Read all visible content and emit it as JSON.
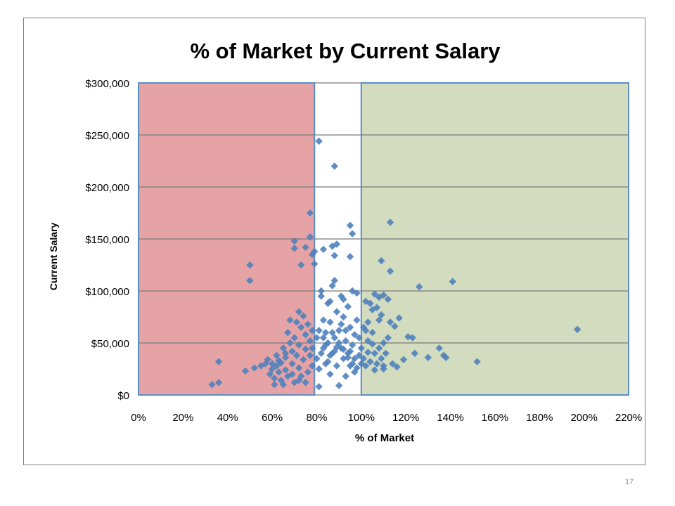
{
  "slide": {
    "number": "17"
  },
  "chart_data": {
    "type": "scatter",
    "title": "% of Market by Current Salary",
    "xlabel": "% of Market",
    "ylabel": "Current Salary",
    "xlim": [
      0,
      2.2
    ],
    "ylim": [
      0,
      300000
    ],
    "x_ticks": [
      0,
      0.2,
      0.4,
      0.6,
      0.8,
      1.0,
      1.2,
      1.4,
      1.6,
      1.8,
      2.0,
      2.2
    ],
    "x_tick_labels": [
      "0%",
      "20%",
      "40%",
      "60%",
      "80%",
      "100%",
      "120%",
      "140%",
      "160%",
      "180%",
      "200%",
      "220%"
    ],
    "y_ticks": [
      0,
      50000,
      100000,
      150000,
      200000,
      250000,
      300000
    ],
    "y_tick_labels": [
      "$0",
      "$50,000",
      "$100,000",
      "$150,000",
      "$200,000",
      "$250,000",
      "$300,000"
    ],
    "grid": {
      "horizontal": true,
      "vertical": false
    },
    "bands": [
      {
        "x_range": [
          0,
          0.79
        ],
        "y_range": [
          0,
          300000
        ],
        "color": "#e6a3a5"
      },
      {
        "x_range": [
          1.0,
          2.2
        ],
        "y_range": [
          0,
          300000
        ],
        "color": "#d3dcbf"
      }
    ],
    "marker": {
      "shape": "diamond",
      "color": "#4f81bd"
    },
    "series": [
      {
        "values": [
          [
            0.81,
            244000
          ],
          [
            0.88,
            220000
          ],
          [
            0.77,
            175000
          ],
          [
            0.77,
            152000
          ],
          [
            0.7,
            148000
          ],
          [
            0.7,
            141000
          ],
          [
            0.75,
            142000
          ],
          [
            0.73,
            125000
          ],
          [
            0.78,
            135000
          ],
          [
            0.79,
            138000
          ],
          [
            0.79,
            126000
          ],
          [
            0.5,
            125000
          ],
          [
            0.5,
            110000
          ],
          [
            0.83,
            140000
          ],
          [
            0.87,
            143000
          ],
          [
            0.89,
            145000
          ],
          [
            0.88,
            134000
          ],
          [
            0.95,
            163000
          ],
          [
            0.96,
            155000
          ],
          [
            0.95,
            133000
          ],
          [
            1.13,
            166000
          ],
          [
            1.09,
            129000
          ],
          [
            1.13,
            119000
          ],
          [
            1.26,
            104000
          ],
          [
            1.41,
            109000
          ],
          [
            1.97,
            63000
          ],
          [
            1.52,
            32000
          ],
          [
            1.35,
            45000
          ],
          [
            1.37,
            38000
          ],
          [
            1.38,
            36000
          ],
          [
            1.3,
            36000
          ],
          [
            1.24,
            40000
          ],
          [
            1.21,
            56000
          ],
          [
            1.23,
            55000
          ],
          [
            1.17,
            74000
          ],
          [
            1.13,
            70000
          ],
          [
            1.15,
            66000
          ],
          [
            1.1,
            96000
          ],
          [
            1.06,
            97000
          ],
          [
            1.08,
            94000
          ],
          [
            1.12,
            92000
          ],
          [
            1.07,
            84000
          ],
          [
            1.04,
            88000
          ],
          [
            1.12,
            55000
          ],
          [
            1.1,
            50000
          ],
          [
            1.19,
            34000
          ],
          [
            1.16,
            27000
          ],
          [
            1.14,
            30000
          ],
          [
            1.1,
            25000
          ],
          [
            1.06,
            24000
          ],
          [
            1.03,
            41000
          ],
          [
            1.05,
            49000
          ],
          [
            1.02,
            62000
          ],
          [
            1.08,
            72000
          ],
          [
            1.09,
            77000
          ],
          [
            0.36,
            32000
          ],
          [
            0.33,
            10000
          ],
          [
            0.36,
            12000
          ],
          [
            0.48,
            23000
          ],
          [
            0.52,
            26000
          ],
          [
            0.55,
            28000
          ],
          [
            0.57,
            30000
          ],
          [
            0.58,
            34000
          ],
          [
            0.59,
            20000
          ],
          [
            0.6,
            25000
          ],
          [
            0.61,
            16000
          ],
          [
            0.61,
            10000
          ],
          [
            0.62,
            38000
          ],
          [
            0.62,
            28000
          ],
          [
            0.63,
            22000
          ],
          [
            0.64,
            14000
          ],
          [
            0.64,
            31000
          ],
          [
            0.65,
            10000
          ],
          [
            0.65,
            45000
          ],
          [
            0.66,
            36000
          ],
          [
            0.66,
            24000
          ],
          [
            0.67,
            60000
          ],
          [
            0.67,
            18000
          ],
          [
            0.68,
            50000
          ],
          [
            0.68,
            72000
          ],
          [
            0.69,
            30000
          ],
          [
            0.69,
            42000
          ],
          [
            0.7,
            12000
          ],
          [
            0.7,
            55000
          ],
          [
            0.71,
            70000
          ],
          [
            0.71,
            38000
          ],
          [
            0.72,
            26000
          ],
          [
            0.72,
            80000
          ],
          [
            0.72,
            48000
          ],
          [
            0.73,
            65000
          ],
          [
            0.73,
            18000
          ],
          [
            0.74,
            34000
          ],
          [
            0.74,
            76000
          ],
          [
            0.75,
            58000
          ],
          [
            0.75,
            44000
          ],
          [
            0.76,
            22000
          ],
          [
            0.76,
            68000
          ],
          [
            0.77,
            38000
          ],
          [
            0.77,
            52000
          ],
          [
            0.78,
            28000
          ],
          [
            0.78,
            62000
          ],
          [
            0.78,
            45000
          ],
          [
            0.75,
            12000
          ],
          [
            0.72,
            14000
          ],
          [
            0.69,
            20000
          ],
          [
            0.66,
            40000
          ],
          [
            0.63,
            33000
          ],
          [
            0.6,
            30000
          ],
          [
            0.8,
            35000
          ],
          [
            0.8,
            55000
          ],
          [
            0.81,
            8000
          ],
          [
            0.81,
            25000
          ],
          [
            0.82,
            95000
          ],
          [
            0.82,
            100000
          ],
          [
            0.83,
            72000
          ],
          [
            0.83,
            45000
          ],
          [
            0.84,
            60000
          ],
          [
            0.84,
            30000
          ],
          [
            0.85,
            88000
          ],
          [
            0.85,
            50000
          ],
          [
            0.86,
            20000
          ],
          [
            0.86,
            70000
          ],
          [
            0.87,
            40000
          ],
          [
            0.87,
            105000
          ],
          [
            0.88,
            110000
          ],
          [
            0.88,
            55000
          ],
          [
            0.89,
            28000
          ],
          [
            0.89,
            80000
          ],
          [
            0.9,
            9000
          ],
          [
            0.9,
            62000
          ],
          [
            0.91,
            45000
          ],
          [
            0.91,
            95000
          ],
          [
            0.92,
            35000
          ],
          [
            0.92,
            75000
          ],
          [
            0.93,
            52000
          ],
          [
            0.93,
            18000
          ],
          [
            0.94,
            85000
          ],
          [
            0.94,
            40000
          ],
          [
            0.95,
            65000
          ],
          [
            0.95,
            28000
          ],
          [
            0.96,
            100000
          ],
          [
            0.96,
            48000
          ],
          [
            0.97,
            58000
          ],
          [
            0.97,
            22000
          ],
          [
            0.98,
            98000
          ],
          [
            0.98,
            72000
          ],
          [
            0.99,
            38000
          ],
          [
            0.99,
            55000
          ],
          [
            1.0,
            45000
          ],
          [
            1.0,
            30000
          ],
          [
            0.82,
            40000
          ],
          [
            0.84,
            48000
          ],
          [
            0.86,
            38000
          ],
          [
            0.88,
            42000
          ],
          [
            0.9,
            50000
          ],
          [
            0.92,
            44000
          ],
          [
            0.94,
            36000
          ],
          [
            0.96,
            30000
          ],
          [
            0.98,
            26000
          ],
          [
            0.85,
            32000
          ],
          [
            0.87,
            60000
          ],
          [
            0.89,
            46000
          ],
          [
            0.91,
            68000
          ],
          [
            0.93,
            62000
          ],
          [
            0.95,
            42000
          ],
          [
            0.97,
            35000
          ],
          [
            0.83,
            55000
          ],
          [
            0.81,
            62000
          ],
          [
            0.86,
            90000
          ],
          [
            0.92,
            92000
          ],
          [
            1.01,
            65000
          ],
          [
            1.01,
            35000
          ],
          [
            1.02,
            28000
          ],
          [
            1.03,
            52000
          ],
          [
            1.04,
            32000
          ],
          [
            1.05,
            60000
          ],
          [
            1.06,
            40000
          ],
          [
            1.07,
            30000
          ],
          [
            1.08,
            45000
          ],
          [
            1.09,
            35000
          ],
          [
            1.1,
            28000
          ],
          [
            1.11,
            40000
          ],
          [
            1.03,
            70000
          ],
          [
            1.05,
            82000
          ],
          [
            1.02,
            90000
          ]
        ]
      }
    ]
  }
}
